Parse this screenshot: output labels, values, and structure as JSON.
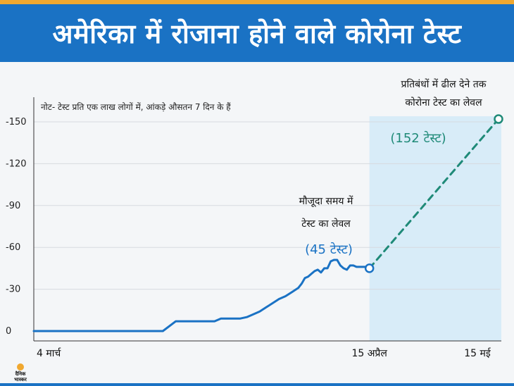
{
  "header": {
    "title": "अमेरिका में रोजाना होने वाले कोरोना टेस्ट"
  },
  "note": "नोट- टेस्ट प्रति एक लाख लोगों में, आंकड़े औसतन 7 दिन के हैं",
  "annotations": {
    "current_line1": "मौजूदा समय में",
    "current_line2": "टेस्ट का लेवल",
    "current_value": "(45 टेस्ट)",
    "target_line1": "प्रतिबंधों में ढील देने तक",
    "target_line2": "कोरोना टेस्ट का लेवल",
    "target_value": "(152 टेस्ट)"
  },
  "logo": {
    "line1": "दैनिक",
    "line2": "भास्कर"
  },
  "colors": {
    "banner": "#1a72c4",
    "accent": "#f0a830",
    "line": "#1a72c4",
    "projection": "#1f8a78",
    "shade": "#d8ecf8"
  },
  "chart_data": {
    "type": "line",
    "xlabels": [
      "4 मार्च",
      "15 अप्रैल",
      "15 मई"
    ],
    "x_range_days": [
      0,
      72
    ],
    "y_ticks": [
      "0",
      "-30",
      "-60",
      "-90",
      "-120",
      "-150"
    ],
    "ylim": [
      0,
      160
    ],
    "grid": "horizontal",
    "series": [
      {
        "style": "solid",
        "points": [
          [
            0,
            0
          ],
          [
            7,
            0
          ],
          [
            14,
            0
          ],
          [
            20,
            0
          ],
          [
            22,
            7
          ],
          [
            25,
            7
          ],
          [
            28,
            7
          ],
          [
            29,
            9
          ],
          [
            32,
            9
          ],
          [
            33,
            10
          ],
          [
            34,
            12
          ],
          [
            35,
            14
          ],
          [
            36,
            17
          ],
          [
            37,
            20
          ],
          [
            38,
            23
          ],
          [
            39,
            25
          ],
          [
            40,
            28
          ],
          [
            41,
            31
          ],
          [
            41.5,
            34
          ],
          [
            42,
            38
          ],
          [
            42.5,
            39
          ],
          [
            43,
            41
          ],
          [
            43.5,
            43
          ],
          [
            44,
            44
          ],
          [
            44.5,
            42
          ],
          [
            45,
            45
          ],
          [
            45.5,
            45
          ],
          [
            46,
            50
          ],
          [
            46.5,
            51
          ],
          [
            47,
            51
          ],
          [
            47.5,
            47
          ],
          [
            48,
            45
          ],
          [
            48.5,
            44
          ],
          [
            49,
            47
          ],
          [
            49.5,
            47
          ],
          [
            50,
            46
          ],
          [
            50.5,
            46
          ],
          [
            51,
            46
          ],
          [
            51.5,
            46
          ],
          [
            52,
            45
          ]
        ]
      },
      {
        "style": "dashed",
        "points": [
          [
            52,
            45
          ],
          [
            72,
            152
          ]
        ]
      }
    ],
    "shaded_region_days": [
      52,
      72
    ]
  }
}
